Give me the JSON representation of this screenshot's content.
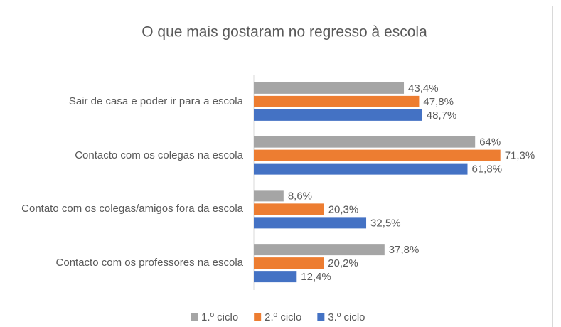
{
  "chart_data": {
    "type": "hbar",
    "title": "O que mais gostaram no regresso à escola",
    "categories": [
      "Sair de casa e poder ir para a escola",
      "Contacto com os colegas na escola",
      "Contato com os colegas/amigos fora da escola",
      "Contacto com os professores na escola"
    ],
    "series": [
      {
        "name": "1.º ciclo",
        "color": "#a5a5a5",
        "values": [
          43.4,
          64,
          8.6,
          37.8
        ],
        "value_labels": [
          "43,4%",
          "64%",
          "8,6%",
          "37,8%"
        ]
      },
      {
        "name": "2.º ciclo",
        "color": "#ed7d31",
        "values": [
          47.8,
          71.3,
          20.3,
          20.2
        ],
        "value_labels": [
          "47,8%",
          "71,3%",
          "20,3%",
          "20,2%"
        ]
      },
      {
        "name": "3.º ciclo",
        "color": "#4472c4",
        "values": [
          48.7,
          61.8,
          32.5,
          12.4
        ],
        "value_labels": [
          "48,7%",
          "61,8%",
          "32,5%",
          "12,4%"
        ]
      }
    ],
    "xlim": [
      0,
      80
    ],
    "legend": "bottom"
  }
}
